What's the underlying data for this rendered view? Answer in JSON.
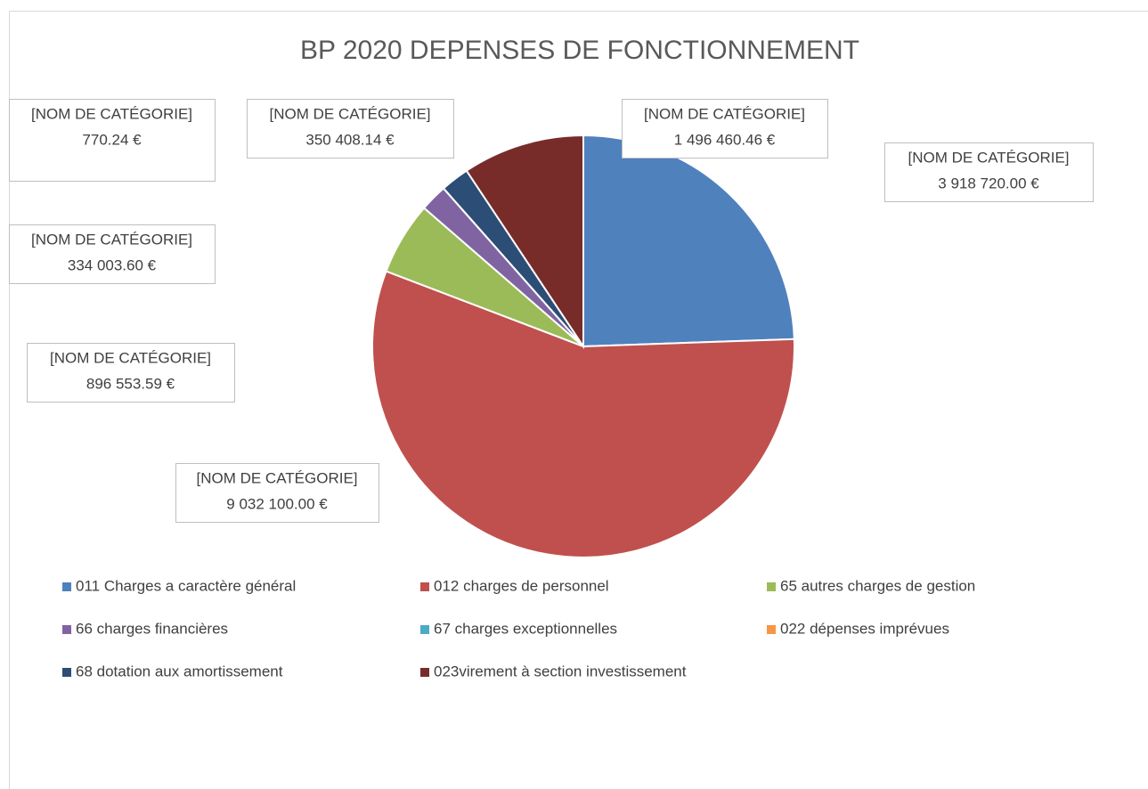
{
  "chart_data": {
    "type": "pie",
    "title": "BP 2020 DEPENSES DE FONCTIONNEMENT",
    "categories": [
      "011 Charges a caractère général",
      "012 charges de personnel",
      "65 autres charges de gestion",
      "66 charges financières",
      "67 charges exceptionnelles",
      "022 dépenses imprévues",
      "68 dotation aux amortissement",
      "023virement à section investissement"
    ],
    "values": [
      3918720.0,
      9032100.0,
      896553.59,
      334003.6,
      770.24,
      null,
      350408.14,
      1496460.46
    ],
    "value_labels": [
      "3 918 720.00 €",
      "9 032 100.00 €",
      "896 553.59 €",
      "334 003.60 €",
      "770.24 €",
      null,
      "350 408.14 €",
      "1 496 460.46 €"
    ],
    "data_label_text": "[NOM DE CATÉGORIE]",
    "colors": [
      "#4f81bd",
      "#c0504d",
      "#9bbb59",
      "#8064a2",
      "#4bacc6",
      "#f79646",
      "#2c4d75",
      "#772c2a"
    ],
    "legend": "bottom"
  }
}
